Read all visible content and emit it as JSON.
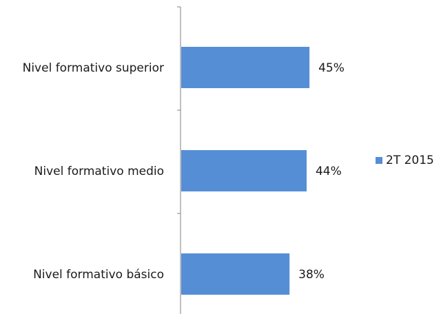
{
  "chart_data": {
    "type": "bar",
    "orientation": "horizontal",
    "categories": [
      "Nivel formativo superior",
      "Nivel formativo medio",
      "Nivel formativo básico"
    ],
    "series": [
      {
        "name": "2T 2015",
        "values": [
          45,
          44,
          38
        ],
        "labels": [
          "45%",
          "44%",
          "38%"
        ],
        "color": "#558ED5"
      }
    ],
    "xlim": [
      0,
      100
    ],
    "grid": false,
    "legend": "right"
  }
}
